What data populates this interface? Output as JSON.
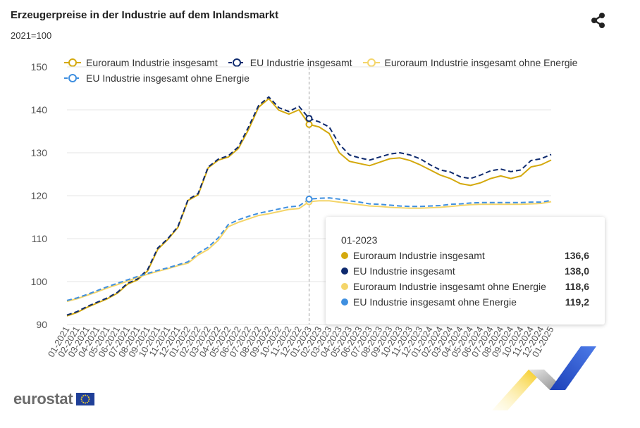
{
  "header": {
    "title": "Erzeugerpreise in der Industrie auf dem Inlandsmarkt",
    "subtitle": "2021=100"
  },
  "share": {
    "icon": "share-icon"
  },
  "brand": {
    "logo_text": "eurostat"
  },
  "tooltip": {
    "date": "01-2023",
    "rows": [
      {
        "name": "Euroraum Industrie insgesamt",
        "value": "136,6"
      },
      {
        "name": "EU Industrie insgesamt",
        "value": "138,0"
      },
      {
        "name": "Euroraum Industrie insgesamt ohne Energie",
        "value": "118,6"
      },
      {
        "name": "EU Industrie insgesamt ohne Energie",
        "value": "119,2"
      }
    ]
  },
  "chart_data": {
    "type": "line",
    "title": "Erzeugerpreise in der Industrie auf dem Inlandsmarkt",
    "subtitle": "2021=100",
    "xlabel": "",
    "ylabel": "",
    "ylim": [
      90,
      150
    ],
    "yticks": [
      90,
      100,
      110,
      120,
      130,
      140,
      150
    ],
    "grid": true,
    "legend_position": "top",
    "highlight_index": 24,
    "x": [
      "01-2021",
      "02-2021",
      "03-2021",
      "04-2021",
      "05-2021",
      "06-2021",
      "07-2021",
      "08-2021",
      "09-2021",
      "10-2021",
      "11-2021",
      "12-2021",
      "01-2022",
      "02-2022",
      "03-2022",
      "04-2022",
      "05-2022",
      "06-2022",
      "07-2022",
      "08-2022",
      "09-2022",
      "10-2022",
      "11-2022",
      "12-2022",
      "01-2023",
      "02-2023",
      "03-2023",
      "04-2023",
      "05-2023",
      "06-2023",
      "07-2023",
      "08-2023",
      "09-2023",
      "10-2023",
      "11-2023",
      "12-2023",
      "01-2024",
      "02-2024",
      "03-2024",
      "04-2024",
      "05-2024",
      "06-2024",
      "07-2024",
      "08-2024",
      "09-2024",
      "10-2024",
      "11-2024",
      "12-2024",
      "01-2025"
    ],
    "series": [
      {
        "name": "Euroraum Industrie insgesamt",
        "color": "#d4a90e",
        "dashed": false,
        "values": [
          92.0,
          92.8,
          94.0,
          95.0,
          96.0,
          97.3,
          99.4,
          100.4,
          102.5,
          107.5,
          109.8,
          112.6,
          118.9,
          120.2,
          126.5,
          128.3,
          129.0,
          131.0,
          135.4,
          140.6,
          142.6,
          139.9,
          139.0,
          140.0,
          136.6,
          136.0,
          134.5,
          130.0,
          128.0,
          127.5,
          127.0,
          127.8,
          128.6,
          128.8,
          128.2,
          127.2,
          126.0,
          124.8,
          124.0,
          122.8,
          122.4,
          123.0,
          124.0,
          124.6,
          124.0,
          124.6,
          126.7,
          127.2,
          128.3
        ]
      },
      {
        "name": "EU Industrie insgesamt",
        "color": "#0e2a6e",
        "dashed": true,
        "values": [
          92.2,
          93.0,
          94.2,
          95.2,
          96.2,
          97.5,
          99.6,
          100.6,
          102.8,
          107.8,
          110.0,
          112.8,
          119.1,
          120.5,
          126.7,
          128.5,
          129.3,
          131.4,
          136.0,
          141.0,
          143.0,
          140.5,
          139.6,
          140.8,
          138.0,
          137.2,
          136.0,
          132.0,
          129.5,
          128.8,
          128.3,
          129.0,
          129.7,
          130.0,
          129.5,
          128.6,
          127.2,
          126.0,
          125.5,
          124.4,
          124.0,
          124.8,
          125.8,
          126.2,
          125.6,
          126.0,
          128.2,
          128.6,
          129.6
        ]
      },
      {
        "name": "Euroraum Industrie insgesamt ohne Energie",
        "color": "#f4d56a",
        "dashed": false,
        "values": [
          95.4,
          96.0,
          96.8,
          97.6,
          98.5,
          99.3,
          100.1,
          101.0,
          101.7,
          102.4,
          103.0,
          103.7,
          104.3,
          106.2,
          107.5,
          109.6,
          112.8,
          113.8,
          114.6,
          115.4,
          115.8,
          116.3,
          116.8,
          117.0,
          118.6,
          118.8,
          118.8,
          118.5,
          118.2,
          117.9,
          117.6,
          117.5,
          117.3,
          117.2,
          117.1,
          117.1,
          117.2,
          117.3,
          117.5,
          117.7,
          117.9,
          118.0,
          118.0,
          118.0,
          118.0,
          118.0,
          118.1,
          118.2,
          118.6
        ]
      },
      {
        "name": "EU Industrie insgesamt ohne Energie",
        "color": "#3f8fe0",
        "dashed": true,
        "values": [
          95.6,
          96.2,
          97.0,
          97.9,
          98.8,
          99.6,
          100.4,
          101.2,
          101.9,
          102.6,
          103.2,
          103.9,
          104.6,
          106.6,
          108.0,
          110.2,
          113.3,
          114.4,
          115.2,
          115.9,
          116.4,
          116.9,
          117.4,
          117.6,
          119.2,
          119.4,
          119.5,
          119.2,
          118.8,
          118.5,
          118.1,
          118.0,
          117.8,
          117.6,
          117.5,
          117.5,
          117.6,
          117.7,
          118.0,
          118.1,
          118.3,
          118.4,
          118.4,
          118.4,
          118.4,
          118.4,
          118.5,
          118.5,
          118.9
        ]
      }
    ]
  }
}
